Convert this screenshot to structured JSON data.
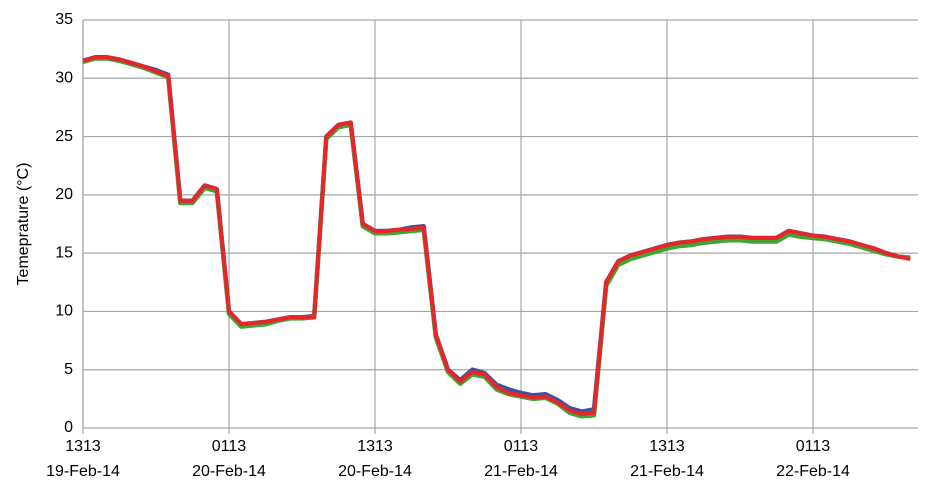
{
  "chart_data": {
    "type": "line",
    "y_label": "Temeprature  (°C)",
    "categories": [
      [
        "1313",
        "19-Feb-14"
      ],
      null,
      null,
      null,
      null,
      null,
      null,
      null,
      null,
      null,
      null,
      null,
      [
        "0113",
        "20-Feb-14"
      ],
      null,
      null,
      null,
      null,
      null,
      null,
      null,
      null,
      null,
      null,
      null,
      [
        "1313",
        "20-Feb-14"
      ],
      null,
      null,
      null,
      null,
      null,
      null,
      null,
      null,
      null,
      null,
      null,
      [
        "0113",
        "21-Feb-14"
      ],
      null,
      null,
      null,
      null,
      null,
      null,
      null,
      null,
      null,
      null,
      null,
      [
        "1313",
        "21-Feb-14"
      ],
      null,
      null,
      null,
      null,
      null,
      null,
      null,
      null,
      null,
      null,
      null,
      [
        "0113",
        "22-Feb-14"
      ],
      null,
      null,
      null,
      null,
      null,
      null,
      null,
      null
    ],
    "series": [
      {
        "color": "#3a52a4",
        "values": [
          31.5,
          31.8,
          31.8,
          31.6,
          31.3,
          31.0,
          30.7,
          30.3,
          19.5,
          19.5,
          20.8,
          20.5,
          10.0,
          8.9,
          9.0,
          9.1,
          9.3,
          9.5,
          9.5,
          9.6,
          25.0,
          26.0,
          26.2,
          17.5,
          16.9,
          16.9,
          17.0,
          17.2,
          17.3,
          8.0,
          5.0,
          4.1,
          5.0,
          4.7,
          3.7,
          3.3,
          3.0,
          2.8,
          2.9,
          2.4,
          1.7,
          1.4,
          1.6,
          12.5,
          14.3,
          14.8,
          15.1,
          15.4,
          15.7,
          15.9,
          16.0,
          16.2,
          16.3,
          16.4,
          16.4,
          16.3,
          16.3,
          16.3,
          16.9,
          16.7,
          16.5,
          16.4,
          16.2,
          16.0,
          15.7,
          15.4,
          15.0,
          14.7,
          14.6
        ]
      },
      {
        "color": "#3fa535",
        "values": [
          31.4,
          31.7,
          31.7,
          31.5,
          31.2,
          30.9,
          30.5,
          30.1,
          19.3,
          19.3,
          20.6,
          20.3,
          9.8,
          8.7,
          8.8,
          8.9,
          9.2,
          9.4,
          9.4,
          9.5,
          24.8,
          25.8,
          26.0,
          17.3,
          16.7,
          16.7,
          16.8,
          16.9,
          17.0,
          7.8,
          4.8,
          3.8,
          4.6,
          4.4,
          3.3,
          2.9,
          2.7,
          2.5,
          2.6,
          2.1,
          1.3,
          1.0,
          1.1,
          12.2,
          14.0,
          14.5,
          14.8,
          15.1,
          15.4,
          15.6,
          15.7,
          15.9,
          16.0,
          16.1,
          16.1,
          16.0,
          16.0,
          16.0,
          16.6,
          16.4,
          16.3,
          16.2,
          16.0,
          15.8,
          15.5,
          15.2,
          14.9,
          14.7,
          14.6
        ]
      },
      {
        "color": "#e8262a",
        "values": [
          31.5,
          31.8,
          31.8,
          31.6,
          31.3,
          31.0,
          30.6,
          30.2,
          19.5,
          19.5,
          20.8,
          20.5,
          10.0,
          8.9,
          9.0,
          9.1,
          9.3,
          9.5,
          9.5,
          9.5,
          25.0,
          26.0,
          26.2,
          17.5,
          16.9,
          16.9,
          17.0,
          17.1,
          17.2,
          8.0,
          5.0,
          4.0,
          4.8,
          4.6,
          3.5,
          3.0,
          2.8,
          2.6,
          2.7,
          2.2,
          1.5,
          1.2,
          1.3,
          12.5,
          14.3,
          14.8,
          15.1,
          15.4,
          15.7,
          15.9,
          16.0,
          16.2,
          16.3,
          16.4,
          16.4,
          16.3,
          16.3,
          16.3,
          16.9,
          16.7,
          16.5,
          16.4,
          16.2,
          16.0,
          15.7,
          15.4,
          15.0,
          14.7,
          14.5
        ]
      }
    ],
    "ylim": [
      0,
      35
    ],
    "yticks": [
      0,
      5,
      10,
      15,
      20,
      25,
      30,
      35
    ],
    "grid": true
  }
}
